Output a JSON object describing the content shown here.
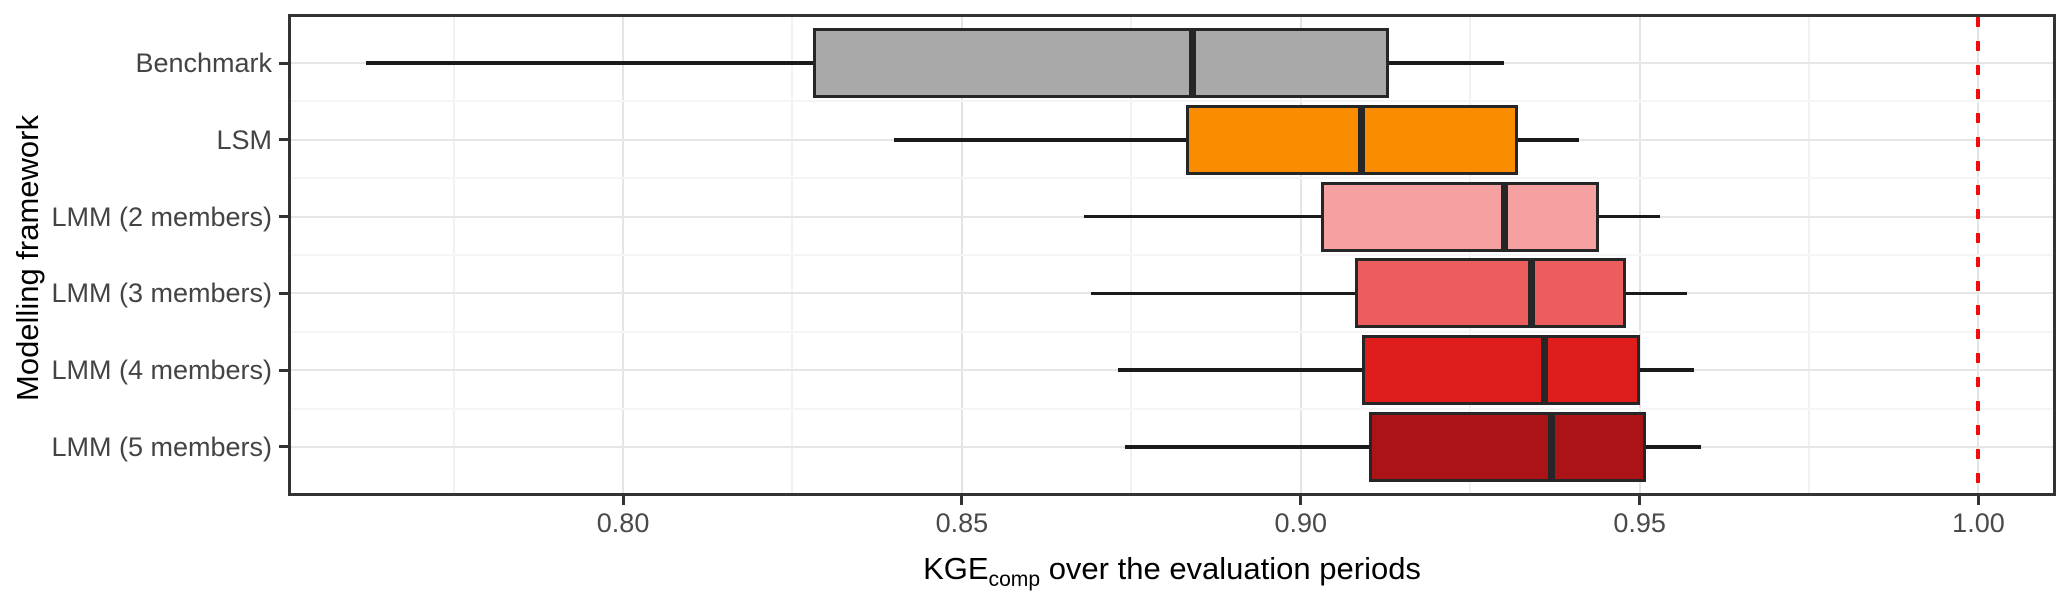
{
  "figure": {
    "y_axis_title": "Modelling framework",
    "x_axis_title_main": "KGE",
    "x_axis_title_sub": "comp",
    "x_axis_title_rest": " over the evaluation periods"
  },
  "chart_data": {
    "type": "boxplot",
    "orientation": "horizontal",
    "title": "",
    "xlabel": "KGE_comp over the evaluation periods",
    "ylabel": "Modelling framework",
    "xlim": [
      0.751,
      1.011
    ],
    "grid": "on",
    "categories": [
      "Benchmark",
      "LSM",
      "LMM (2 members)",
      "LMM (3 members)",
      "LMM (4 members)",
      "LMM (5 members)"
    ],
    "x_major_ticks": [
      0.8,
      0.85,
      0.9,
      0.95,
      1.0
    ],
    "x_tick_labels": [
      "0.80",
      "0.85",
      "0.90",
      "0.95",
      "1.00"
    ],
    "x_minor_gridlines": [
      0.775,
      0.825,
      0.875,
      0.925,
      0.975
    ],
    "reference_line": {
      "x": 1.0,
      "color": "#F40B0B",
      "style": "dashed"
    },
    "boxes": [
      {
        "category": "Benchmark",
        "whisker_min": 0.762,
        "q1": 0.828,
        "median": 0.884,
        "q3": 0.913,
        "whisker_max": 0.93,
        "fill": "#A9A9A9"
      },
      {
        "category": "LSM",
        "whisker_min": 0.84,
        "q1": 0.883,
        "median": 0.909,
        "q3": 0.932,
        "whisker_max": 0.941,
        "fill": "#FA8C00"
      },
      {
        "category": "LMM (2 members)",
        "whisker_min": 0.868,
        "q1": 0.903,
        "median": 0.93,
        "q3": 0.944,
        "whisker_max": 0.953,
        "fill": "#F5A1A2"
      },
      {
        "category": "LMM (3 members)",
        "whisker_min": 0.869,
        "q1": 0.908,
        "median": 0.934,
        "q3": 0.948,
        "whisker_max": 0.957,
        "fill": "#EC5D5D"
      },
      {
        "category": "LMM (4 members)",
        "whisker_min": 0.873,
        "q1": 0.909,
        "median": 0.936,
        "q3": 0.95,
        "whisker_max": 0.958,
        "fill": "#E01D1D"
      },
      {
        "category": "LMM (5 members)",
        "whisker_min": 0.874,
        "q1": 0.91,
        "median": 0.937,
        "q3": 0.951,
        "whisker_max": 0.959,
        "fill": "#AC1317"
      }
    ],
    "style": {
      "box_border_color": "#262626",
      "median_color": "#262626",
      "whisker_color": "#1A1A1A",
      "panel_border_color": "#333333",
      "major_grid_color": "#E4E4E4",
      "minor_grid_color": "#F1F1F1",
      "tick_color": "#333333",
      "tick_label_color": "#4A4A4A",
      "axis_title_color": "#000000"
    }
  }
}
